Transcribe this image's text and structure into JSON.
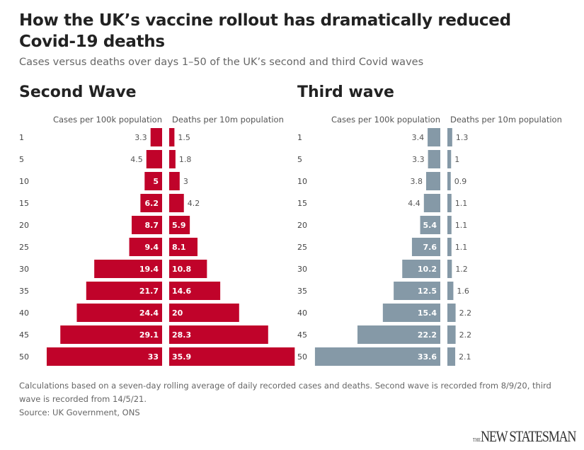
{
  "title": "How the UK’s vaccine rollout has dramatically reduced Covid-19 deaths",
  "subtitle": "Cases versus deaths over days 1–50 of the UK’s second and third Covid waves",
  "chart_data": [
    {
      "type": "bar",
      "title": "Second Wave",
      "orientation": "horizontal-diverging",
      "categories": [
        "1",
        "5",
        "10",
        "15",
        "20",
        "25",
        "30",
        "35",
        "40",
        "45",
        "50"
      ],
      "series": [
        {
          "name": "Cases per 100k population",
          "values": [
            3.3,
            4.5,
            5,
            6.2,
            8.7,
            9.4,
            19.4,
            21.7,
            24.4,
            29.1,
            33
          ]
        },
        {
          "name": "Deaths per 10m population",
          "values": [
            1.5,
            1.8,
            3,
            4.2,
            5.9,
            8.1,
            10.8,
            14.6,
            20,
            28.3,
            35.9
          ]
        }
      ],
      "color": "#c0032a"
    },
    {
      "type": "bar",
      "title": "Third wave",
      "orientation": "horizontal-diverging",
      "categories": [
        "1",
        "5",
        "10",
        "15",
        "20",
        "25",
        "30",
        "35",
        "40",
        "45",
        "50"
      ],
      "series": [
        {
          "name": "Cases per 100k population",
          "values": [
            3.4,
            3.3,
            3.8,
            4.4,
            5.4,
            7.6,
            10.2,
            12.5,
            15.4,
            22.2,
            33.6
          ]
        },
        {
          "name": "Deaths per 10m population",
          "values": [
            1.3,
            1,
            0.9,
            1.1,
            1.1,
            1.1,
            1.2,
            1.6,
            2.2,
            2.2,
            2.1
          ]
        }
      ],
      "color": "#8599a7"
    }
  ],
  "notes": "Calculations based on a seven-day rolling average of daily recorded cases and deaths. Second wave is recorded from 8/9/20, third wave is recorded from 14/5/21.",
  "source": "Source: UK Government, ONS",
  "logo": {
    "prefix": "THE",
    "name": "NEW STATESMAN"
  }
}
